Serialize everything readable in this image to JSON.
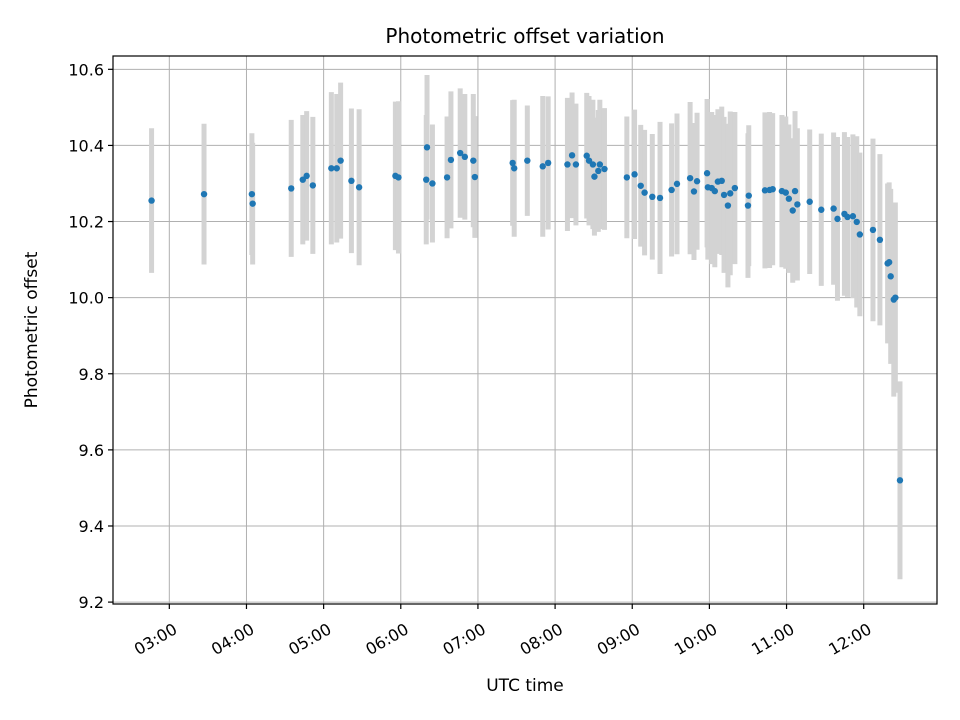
{
  "chart_data": {
    "type": "scatter",
    "title": "Photometric offset variation",
    "xlabel": "UTC time",
    "ylabel": "Photometric offset",
    "x_unit": "UTC hours",
    "xlim": [
      2.27,
      12.95
    ],
    "ylim": [
      9.195,
      10.635
    ],
    "x_ticks": [
      3,
      4,
      5,
      6,
      7,
      8,
      9,
      10,
      11,
      12
    ],
    "x_tick_labels": [
      "03:00",
      "04:00",
      "05:00",
      "06:00",
      "07:00",
      "08:00",
      "09:00",
      "10:00",
      "11:00",
      "12:00"
    ],
    "y_ticks": [
      9.2,
      9.4,
      9.6,
      9.8,
      10.0,
      10.2,
      10.4,
      10.6
    ],
    "y_tick_labels": [
      "9.2",
      "9.4",
      "9.6",
      "9.8",
      "10.0",
      "10.2",
      "10.4",
      "10.6"
    ],
    "grid": true,
    "colors": {
      "points": "#1f77b4",
      "error_bars": "#d3d3d3"
    },
    "points": [
      [
        2.77,
        10.255,
        0.19
      ],
      [
        3.45,
        10.272,
        0.185
      ],
      [
        4.07,
        10.272,
        0.16
      ],
      [
        4.08,
        10.247,
        0.16
      ],
      [
        4.58,
        10.287,
        0.18
      ],
      [
        4.73,
        10.31,
        0.17
      ],
      [
        4.78,
        10.32,
        0.17
      ],
      [
        4.86,
        10.295,
        0.18
      ],
      [
        5.1,
        10.34,
        0.2
      ],
      [
        5.17,
        10.34,
        0.195
      ],
      [
        5.22,
        10.36,
        0.205
      ],
      [
        5.36,
        10.307,
        0.19
      ],
      [
        5.46,
        10.29,
        0.205
      ],
      [
        5.93,
        10.32,
        0.195
      ],
      [
        5.97,
        10.316,
        0.2
      ],
      [
        6.33,
        10.31,
        0.17
      ],
      [
        6.34,
        10.395,
        0.19
      ],
      [
        6.41,
        10.3,
        0.155
      ],
      [
        6.6,
        10.316,
        0.16
      ],
      [
        6.65,
        10.362,
        0.18
      ],
      [
        6.77,
        10.38,
        0.17
      ],
      [
        6.83,
        10.37,
        0.165
      ],
      [
        6.94,
        10.36,
        0.175
      ],
      [
        6.96,
        10.317,
        0.16
      ],
      [
        7.45,
        10.354,
        0.165
      ],
      [
        7.47,
        10.34,
        0.18
      ],
      [
        7.64,
        10.36,
        0.145
      ],
      [
        7.84,
        10.345,
        0.185
      ],
      [
        7.91,
        10.354,
        0.175
      ],
      [
        8.16,
        10.35,
        0.175
      ],
      [
        8.22,
        10.374,
        0.165
      ],
      [
        8.27,
        10.35,
        0.16
      ],
      [
        8.41,
        10.373,
        0.165
      ],
      [
        8.44,
        10.36,
        0.17
      ],
      [
        8.49,
        10.35,
        0.17
      ],
      [
        8.51,
        10.318,
        0.155
      ],
      [
        8.56,
        10.333,
        0.16
      ],
      [
        8.58,
        10.35,
        0.17
      ],
      [
        8.64,
        10.338,
        0.16
      ],
      [
        8.93,
        10.316,
        0.16
      ],
      [
        9.03,
        10.324,
        0.17
      ],
      [
        9.11,
        10.294,
        0.16
      ],
      [
        9.16,
        10.276,
        0.165
      ],
      [
        9.26,
        10.265,
        0.165
      ],
      [
        9.36,
        10.262,
        0.2
      ],
      [
        9.51,
        10.283,
        0.175
      ],
      [
        9.58,
        10.299,
        0.185
      ],
      [
        9.75,
        10.314,
        0.2
      ],
      [
        9.8,
        10.279,
        0.18
      ],
      [
        9.84,
        10.306,
        0.18
      ],
      [
        9.97,
        10.327,
        0.195
      ],
      [
        9.98,
        10.29,
        0.19
      ],
      [
        10.03,
        10.288,
        0.2
      ],
      [
        10.07,
        10.28,
        0.2
      ],
      [
        10.11,
        10.305,
        0.19
      ],
      [
        10.16,
        10.307,
        0.195
      ],
      [
        10.19,
        10.27,
        0.205
      ],
      [
        10.24,
        10.242,
        0.215
      ],
      [
        10.27,
        10.274,
        0.215
      ],
      [
        10.33,
        10.288,
        0.2
      ],
      [
        10.5,
        10.242,
        0.19
      ],
      [
        10.51,
        10.268,
        0.185
      ],
      [
        10.72,
        10.282,
        0.205
      ],
      [
        10.78,
        10.283,
        0.205
      ],
      [
        10.82,
        10.285,
        0.2
      ],
      [
        10.94,
        10.28,
        0.2
      ],
      [
        10.99,
        10.276,
        0.2
      ],
      [
        11.03,
        10.26,
        0.195
      ],
      [
        11.08,
        10.229,
        0.19
      ],
      [
        11.11,
        10.28,
        0.21
      ],
      [
        11.14,
        10.245,
        0.2
      ],
      [
        11.3,
        10.252,
        0.19
      ],
      [
        11.45,
        10.231,
        0.2
      ],
      [
        11.61,
        10.234,
        0.2
      ],
      [
        11.66,
        10.207,
        0.215
      ],
      [
        11.75,
        10.22,
        0.215
      ],
      [
        11.79,
        10.212,
        0.21
      ],
      [
        11.86,
        10.214,
        0.215
      ],
      [
        11.91,
        10.199,
        0.225
      ],
      [
        11.95,
        10.166,
        0.215
      ],
      [
        12.12,
        10.178,
        0.24
      ],
      [
        12.21,
        10.152,
        0.225
      ],
      [
        12.31,
        10.09,
        0.21
      ],
      [
        12.33,
        10.093,
        0.21
      ],
      [
        12.35,
        10.056,
        0.23
      ],
      [
        12.39,
        9.995,
        0.255
      ],
      [
        12.41,
        10.0,
        0.25
      ],
      [
        12.47,
        9.52,
        0.26
      ]
    ]
  }
}
